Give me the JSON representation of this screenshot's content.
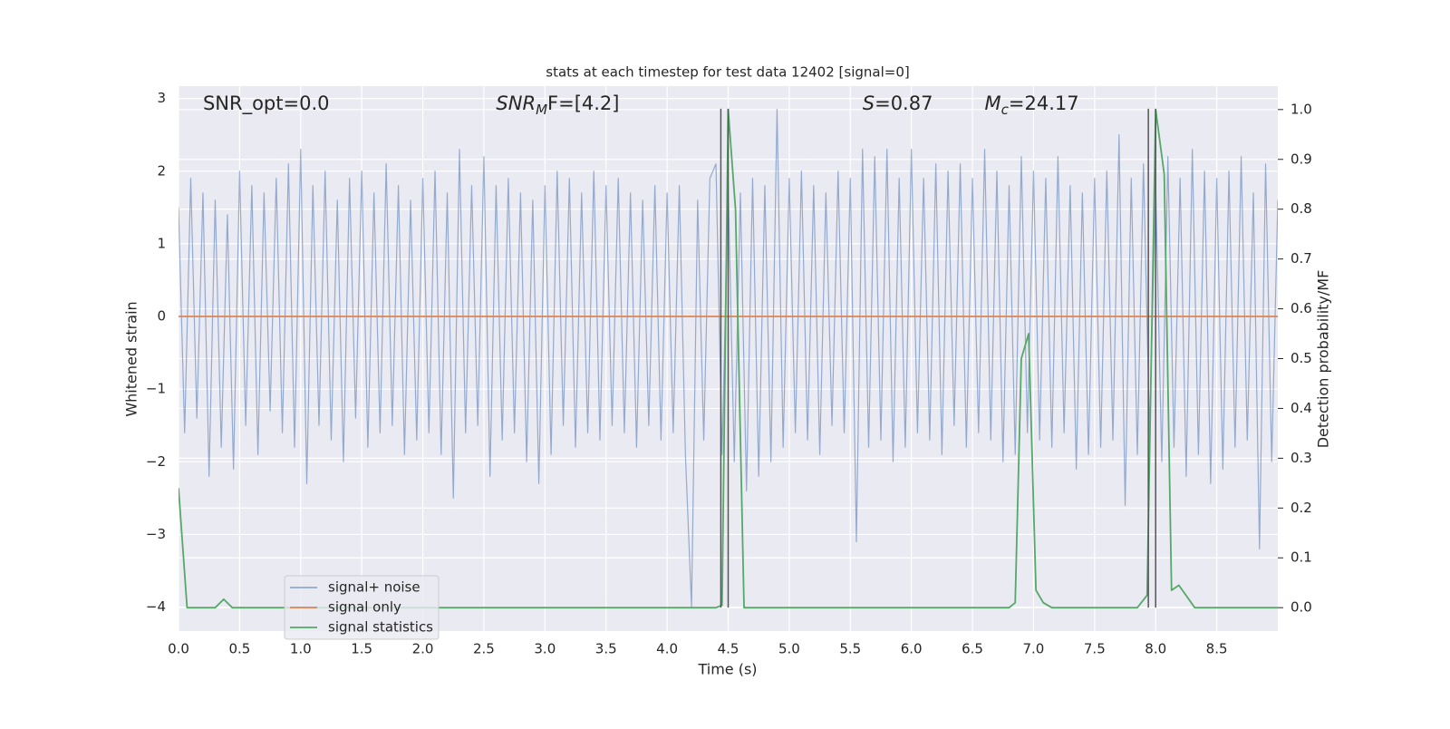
{
  "chart_data": {
    "type": "line",
    "title": "stats at each timestep for test data 12402 [signal=0]",
    "xlabel": "Time (s)",
    "ylabel": "Whitened strain",
    "y2label": "Detection probability/MF",
    "xlim": [
      0,
      9.0
    ],
    "ylim": [
      -4.33,
      3.17
    ],
    "y2lim": [
      -0.047,
      1.047
    ],
    "xticks": [
      {
        "value": 0,
        "label": "0.0"
      },
      0.5,
      {
        "value": 1,
        "label": "1.0"
      },
      1.5,
      {
        "value": 2,
        "label": "2.0"
      },
      2.5,
      {
        "value": 3,
        "label": "3.0"
      },
      3.5,
      {
        "value": 4,
        "label": "4.0"
      },
      4.5,
      {
        "value": 5,
        "label": "5.0"
      },
      5.5,
      {
        "value": 6,
        "label": "6.0"
      },
      6.5,
      {
        "value": 7,
        "label": "7.0"
      },
      7.5,
      {
        "value": 8,
        "label": "8.0"
      },
      8.5
    ],
    "yticks": [
      {
        "value": -4,
        "label": "−4"
      },
      {
        "value": -3,
        "label": "−3"
      },
      {
        "value": -2,
        "label": "−2"
      },
      {
        "value": -1,
        "label": "−1"
      },
      0,
      1,
      2,
      3
    ],
    "y2ticks": [
      {
        "value": 0,
        "label": "0.0"
      },
      0.1,
      0.2,
      0.3,
      0.4,
      0.5,
      0.6,
      0.7,
      0.8,
      0.9,
      {
        "value": 1,
        "label": "1.0"
      }
    ],
    "grid": true,
    "legend": "lower left",
    "annotations": [
      {
        "base": "SNR_opt=0.0",
        "x": 0.2
      },
      {
        "base": "SNR",
        "sub": "M",
        "rest": "F=[4.2]",
        "x": 2.6
      },
      {
        "base": "S",
        "rest": "=0.87",
        "x": 5.6
      },
      {
        "base": "M",
        "sub": "c",
        "rest": "=24.17",
        "x": 6.6
      }
    ],
    "vlines": [
      4.44,
      4.5,
      7.94,
      8.0
    ],
    "series": [
      {
        "name": "signal+ noise",
        "color": "#4c72b0",
        "x": [
          0,
          0.05,
          0.1,
          0.15,
          0.2,
          0.25,
          0.3,
          0.35,
          0.4,
          0.45,
          0.5,
          0.55,
          0.6,
          0.65,
          0.7,
          0.75,
          0.8,
          0.85,
          0.9,
          0.95,
          1,
          1.05,
          1.1,
          1.15,
          1.2,
          1.25,
          1.3,
          1.35,
          1.4,
          1.45,
          1.5,
          1.55,
          1.6,
          1.65,
          1.7,
          1.75,
          1.8,
          1.85,
          1.9,
          1.95,
          2,
          2.05,
          2.1,
          2.15,
          2.2,
          2.25,
          2.3,
          2.35,
          2.4,
          2.45,
          2.5,
          2.55,
          2.6,
          2.65,
          2.7,
          2.75,
          2.8,
          2.85,
          2.9,
          2.95,
          3,
          3.05,
          3.1,
          3.15,
          3.2,
          3.25,
          3.3,
          3.35,
          3.4,
          3.45,
          3.5,
          3.55,
          3.6,
          3.65,
          3.7,
          3.75,
          3.8,
          3.85,
          3.9,
          3.95,
          4,
          4.05,
          4.1,
          4.15,
          4.2,
          4.25,
          4.3,
          4.35,
          4.4,
          4.45,
          4.5,
          4.55,
          4.6,
          4.65,
          4.7,
          4.75,
          4.8,
          4.85,
          4.9,
          4.95,
          5,
          5.05,
          5.1,
          5.15,
          5.2,
          5.25,
          5.3,
          5.35,
          5.4,
          5.45,
          5.5,
          5.55,
          5.6,
          5.65,
          5.7,
          5.75,
          5.8,
          5.85,
          5.9,
          5.95,
          6,
          6.05,
          6.1,
          6.15,
          6.2,
          6.25,
          6.3,
          6.35,
          6.4,
          6.45,
          6.5,
          6.55,
          6.6,
          6.65,
          6.7,
          6.75,
          6.8,
          6.85,
          6.9,
          6.95,
          7,
          7.05,
          7.1,
          7.15,
          7.2,
          7.25,
          7.3,
          7.35,
          7.4,
          7.45,
          7.5,
          7.55,
          7.6,
          7.65,
          7.7,
          7.75,
          7.8,
          7.85,
          7.9,
          7.95,
          8,
          8.05,
          8.1,
          8.15,
          8.2,
          8.25,
          8.3,
          8.35,
          8.4,
          8.45,
          8.5,
          8.55,
          8.6,
          8.65,
          8.7,
          8.75,
          8.8,
          8.85,
          8.9,
          8.95,
          9
        ],
        "values": [
          1.5,
          -1.6,
          1.9,
          -1.4,
          1.7,
          -2.2,
          1.6,
          -1.8,
          1.4,
          -2.1,
          2.0,
          -1.5,
          1.8,
          -1.9,
          1.7,
          -1.3,
          1.9,
          -1.6,
          2.1,
          -1.8,
          2.3,
          -2.3,
          1.8,
          -1.5,
          2.0,
          -1.7,
          1.6,
          -2.0,
          1.9,
          -1.4,
          2.0,
          -1.8,
          1.7,
          -1.6,
          2.1,
          -1.5,
          1.8,
          -1.9,
          1.6,
          -1.7,
          1.9,
          -1.6,
          2.0,
          -1.9,
          1.7,
          -2.5,
          2.3,
          -1.6,
          1.8,
          -1.5,
          2.2,
          -2.2,
          1.8,
          -1.7,
          1.9,
          -1.6,
          1.7,
          -2.0,
          1.6,
          -2.3,
          1.8,
          -1.9,
          2.0,
          -1.5,
          1.9,
          -1.8,
          1.7,
          -1.6,
          2.0,
          -1.7,
          1.8,
          -1.5,
          1.9,
          -1.6,
          1.7,
          -1.8,
          1.6,
          -1.5,
          1.8,
          -1.7,
          1.7,
          -1.6,
          1.8,
          -1.9,
          -4.0,
          1.6,
          -1.7,
          1.9,
          2.1,
          -1.9,
          1.8,
          -2.0,
          1.7,
          -2.4,
          1.9,
          -2.2,
          1.8,
          -2.0,
          2.85,
          -1.8,
          1.9,
          -1.6,
          2.0,
          -1.7,
          1.8,
          -1.9,
          1.7,
          -1.5,
          2.0,
          -1.6,
          1.9,
          -3.1,
          2.3,
          -1.8,
          2.2,
          -1.7,
          2.3,
          -2.0,
          1.9,
          -1.8,
          2.3,
          -1.6,
          1.9,
          -1.7,
          2.1,
          -1.9,
          2.0,
          -1.5,
          2.1,
          -1.8,
          1.9,
          -1.6,
          2.3,
          -1.7,
          2.0,
          -2.0,
          1.8,
          -1.9,
          2.2,
          -1.6,
          2.0,
          -1.7,
          1.9,
          -1.8,
          2.2,
          -1.6,
          1.8,
          -2.1,
          1.7,
          -1.9,
          1.9,
          -1.8,
          2.0,
          -1.7,
          2.5,
          -2.6,
          1.9,
          -1.9,
          2.1,
          -1.6,
          1.8,
          -2.0,
          2.2,
          -1.8,
          1.9,
          -2.2,
          2.3,
          -1.9,
          2.0,
          -2.3,
          1.9,
          -2.1,
          2.0,
          -1.8,
          2.2,
          -1.7,
          1.7,
          -3.2,
          2.1,
          -2.0,
          1.6
        ]
      },
      {
        "name": "signal only",
        "color": "#dd8452",
        "x": [
          0,
          9.0
        ],
        "values": [
          0,
          0
        ]
      },
      {
        "name": "signal statistics",
        "color": "#55a868",
        "axis": "y2",
        "x": [
          0,
          0.07,
          0.15,
          0.3,
          0.37,
          0.44,
          4.4,
          4.45,
          4.5,
          4.56,
          4.63,
          6.8,
          6.85,
          6.9,
          6.96,
          7.02,
          7.08,
          7.15,
          7.85,
          7.93,
          8.0,
          8.07,
          8.13,
          8.19,
          8.32,
          9.0
        ],
        "values": [
          0.24,
          0,
          0,
          0,
          0.017,
          0,
          0,
          0.005,
          1.0,
          0.8,
          0,
          0,
          0.01,
          0.5,
          0.55,
          0.035,
          0.01,
          0,
          0,
          0.025,
          1.0,
          0.87,
          0.035,
          0.045,
          0,
          0
        ]
      }
    ]
  }
}
